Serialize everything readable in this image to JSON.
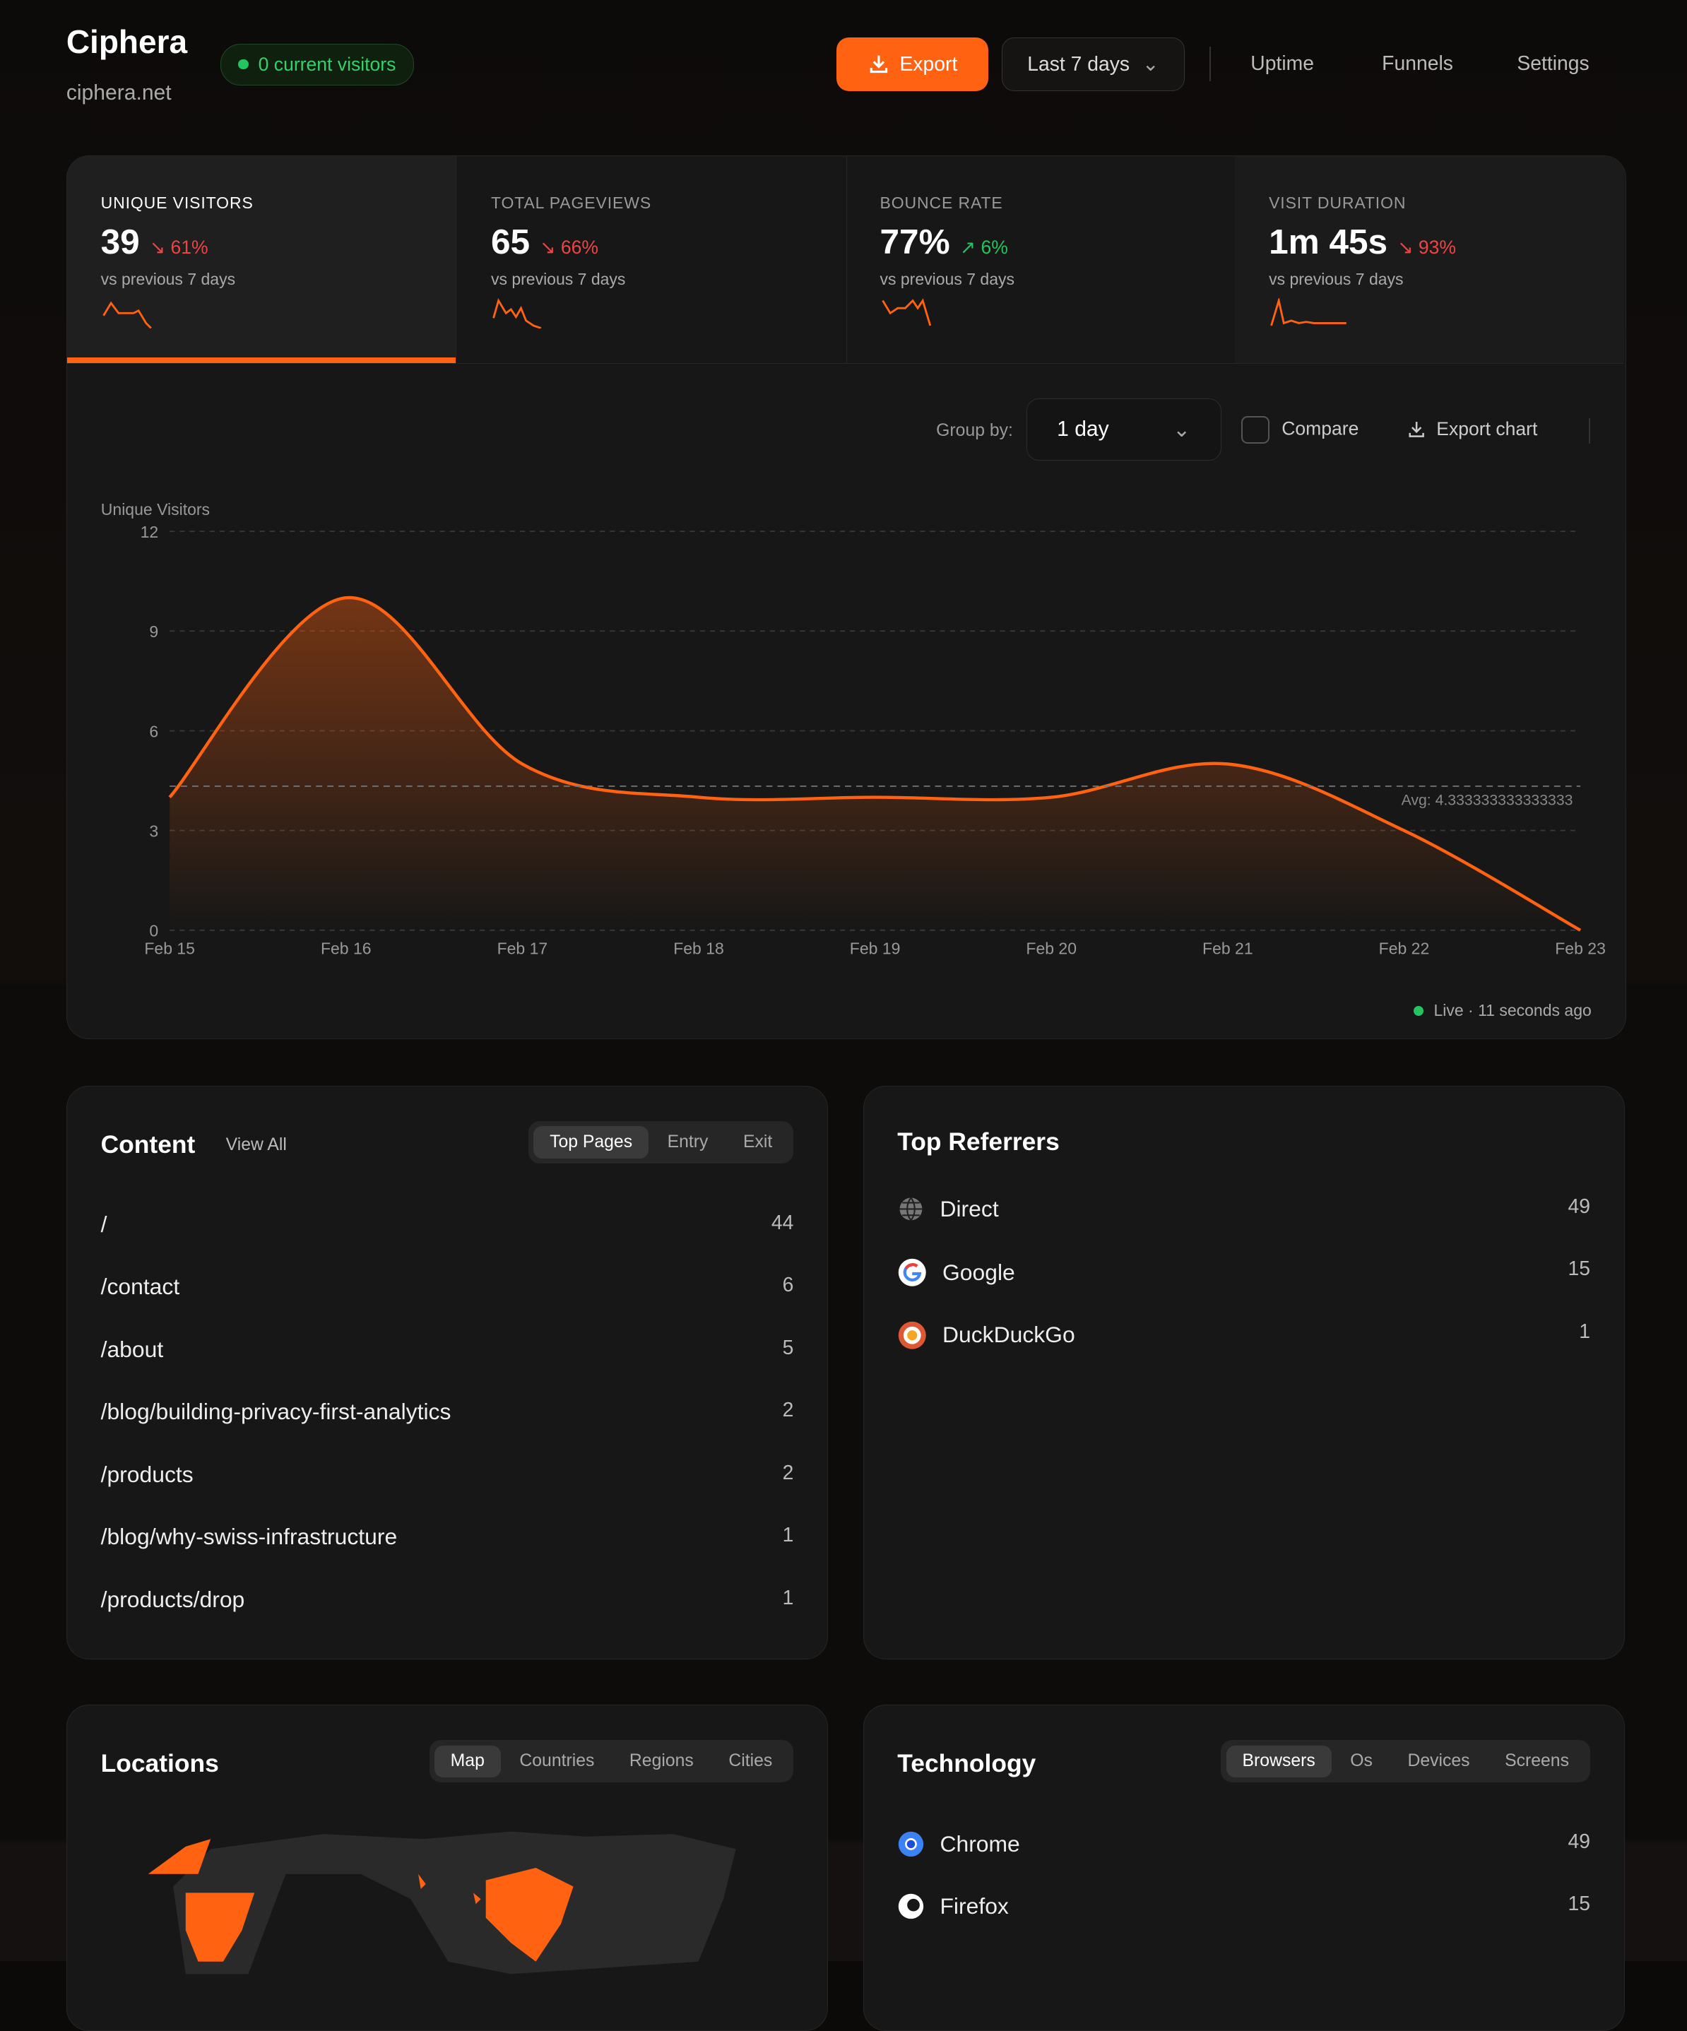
{
  "header": {
    "title": "Ciphera",
    "domain": "ciphera.net",
    "visitors_badge": "0 current visitors",
    "export_label": "Export",
    "range_label": "Last 7 days",
    "nav": [
      "Uptime",
      "Funnels",
      "Settings"
    ]
  },
  "colors": {
    "accent": "#ff6311",
    "up": "#22c55e",
    "down": "#ef4444"
  },
  "stats": [
    {
      "label": "UNIQUE VISITORS",
      "value": "39",
      "change": "61%",
      "direction": "down",
      "compare": "vs previous 7 days",
      "active": true
    },
    {
      "label": "TOTAL PAGEVIEWS",
      "value": "65",
      "change": "66%",
      "direction": "down",
      "compare": "vs previous 7 days"
    },
    {
      "label": "BOUNCE RATE",
      "value": "77%",
      "change": "6%",
      "direction": "up",
      "compare": "vs previous 7 days"
    },
    {
      "label": "VISIT DURATION",
      "value": "1m 45s",
      "change": "93%",
      "direction": "down",
      "compare": "vs previous 7 days"
    }
  ],
  "chart_controls": {
    "group_by_label": "Group by:",
    "group_by_value": "1 day",
    "compare_label": "Compare",
    "export_chart_label": "Export chart",
    "live_text": "Live · 11 seconds ago"
  },
  "chart_data": {
    "type": "area",
    "ylabel": "Unique Visitors",
    "x": [
      "Feb 15",
      "Feb 16",
      "Feb 17",
      "Feb 18",
      "Feb 19",
      "Feb 20",
      "Feb 21",
      "Feb 22",
      "Feb 23"
    ],
    "values": [
      4,
      10,
      5,
      4,
      4,
      4,
      5,
      3,
      0
    ],
    "yticks": [
      0,
      3,
      6,
      9,
      12
    ],
    "ylim": [
      0,
      12
    ],
    "avg_label": "Avg: 4.333333333333333",
    "avg": 4.333333333333333,
    "grid": true
  },
  "content": {
    "title": "Content",
    "view_all": "View All",
    "tabs": [
      "Top Pages",
      "Entry",
      "Exit"
    ],
    "rows": [
      {
        "path": "/",
        "count": "44"
      },
      {
        "path": "/contact",
        "count": "6"
      },
      {
        "path": "/about",
        "count": "5"
      },
      {
        "path": "/blog/building-privacy-first-analytics",
        "count": "2"
      },
      {
        "path": "/products",
        "count": "2"
      },
      {
        "path": "/blog/why-swiss-infrastructure",
        "count": "1"
      },
      {
        "path": "/products/drop",
        "count": "1"
      }
    ]
  },
  "referrers": {
    "title": "Top Referrers",
    "rows": [
      {
        "name": "Direct",
        "count": "49",
        "icon": "globe-icon"
      },
      {
        "name": "Google",
        "count": "15",
        "icon": "google-icon"
      },
      {
        "name": "DuckDuckGo",
        "count": "1",
        "icon": "duckduckgo-icon"
      }
    ]
  },
  "locations": {
    "title": "Locations",
    "tabs": [
      "Map",
      "Countries",
      "Regions",
      "Cities"
    ]
  },
  "technology": {
    "title": "Technology",
    "tabs": [
      "Browsers",
      "Os",
      "Devices",
      "Screens"
    ],
    "rows": [
      {
        "name": "Chrome",
        "count": "49",
        "icon": "chrome-icon"
      },
      {
        "name": "Firefox",
        "count": "15",
        "icon": "firefox-icon"
      }
    ]
  }
}
